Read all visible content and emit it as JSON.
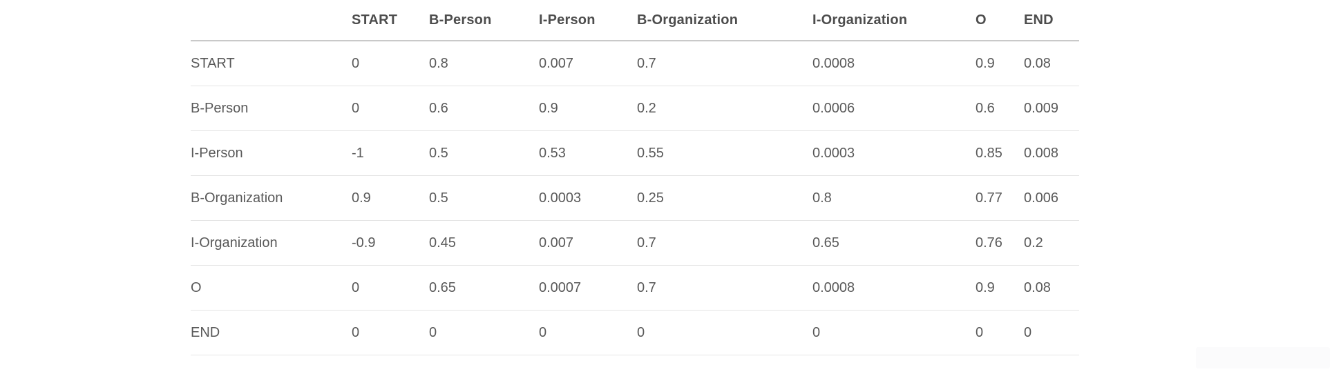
{
  "colors": {
    "page_background": "#ffffff",
    "header_text": "#4d4d4d",
    "body_text": "#595959",
    "header_rule": "#c9c9c9",
    "row_rule": "#e4e4e4",
    "artifact_background": "#fbfbfc"
  },
  "chart_data": {
    "type": "table",
    "corner_label": "",
    "columns": [
      "START",
      "B-Person",
      "I-Person",
      "B-Organization",
      "I-Organization",
      "O",
      "END"
    ],
    "rows": [
      {
        "label": "START",
        "values": [
          "0",
          "0.8",
          "0.007",
          "0.7",
          "0.0008",
          "0.9",
          "0.08"
        ]
      },
      {
        "label": "B-Person",
        "values": [
          "0",
          "0.6",
          "0.9",
          "0.2",
          "0.0006",
          "0.6",
          "0.009"
        ]
      },
      {
        "label": "I-Person",
        "values": [
          "-1",
          "0.5",
          "0.53",
          "0.55",
          "0.0003",
          "0.85",
          "0.008"
        ]
      },
      {
        "label": "B-Organization",
        "values": [
          "0.9",
          "0.5",
          "0.0003",
          "0.25",
          "0.8",
          "0.77",
          "0.006"
        ]
      },
      {
        "label": "I-Organization",
        "values": [
          "-0.9",
          "0.45",
          "0.007",
          "0.7",
          "0.65",
          "0.76",
          "0.2"
        ]
      },
      {
        "label": "O",
        "values": [
          "0",
          "0.65",
          "0.0007",
          "0.7",
          "0.0008",
          "0.9",
          "0.08"
        ]
      },
      {
        "label": "END",
        "values": [
          "0",
          "0",
          "0",
          "0",
          "0",
          "0",
          "0"
        ]
      }
    ],
    "layout": {
      "grid": "horizontal-rules-only",
      "header_align": "left",
      "cell_align": "left"
    }
  }
}
